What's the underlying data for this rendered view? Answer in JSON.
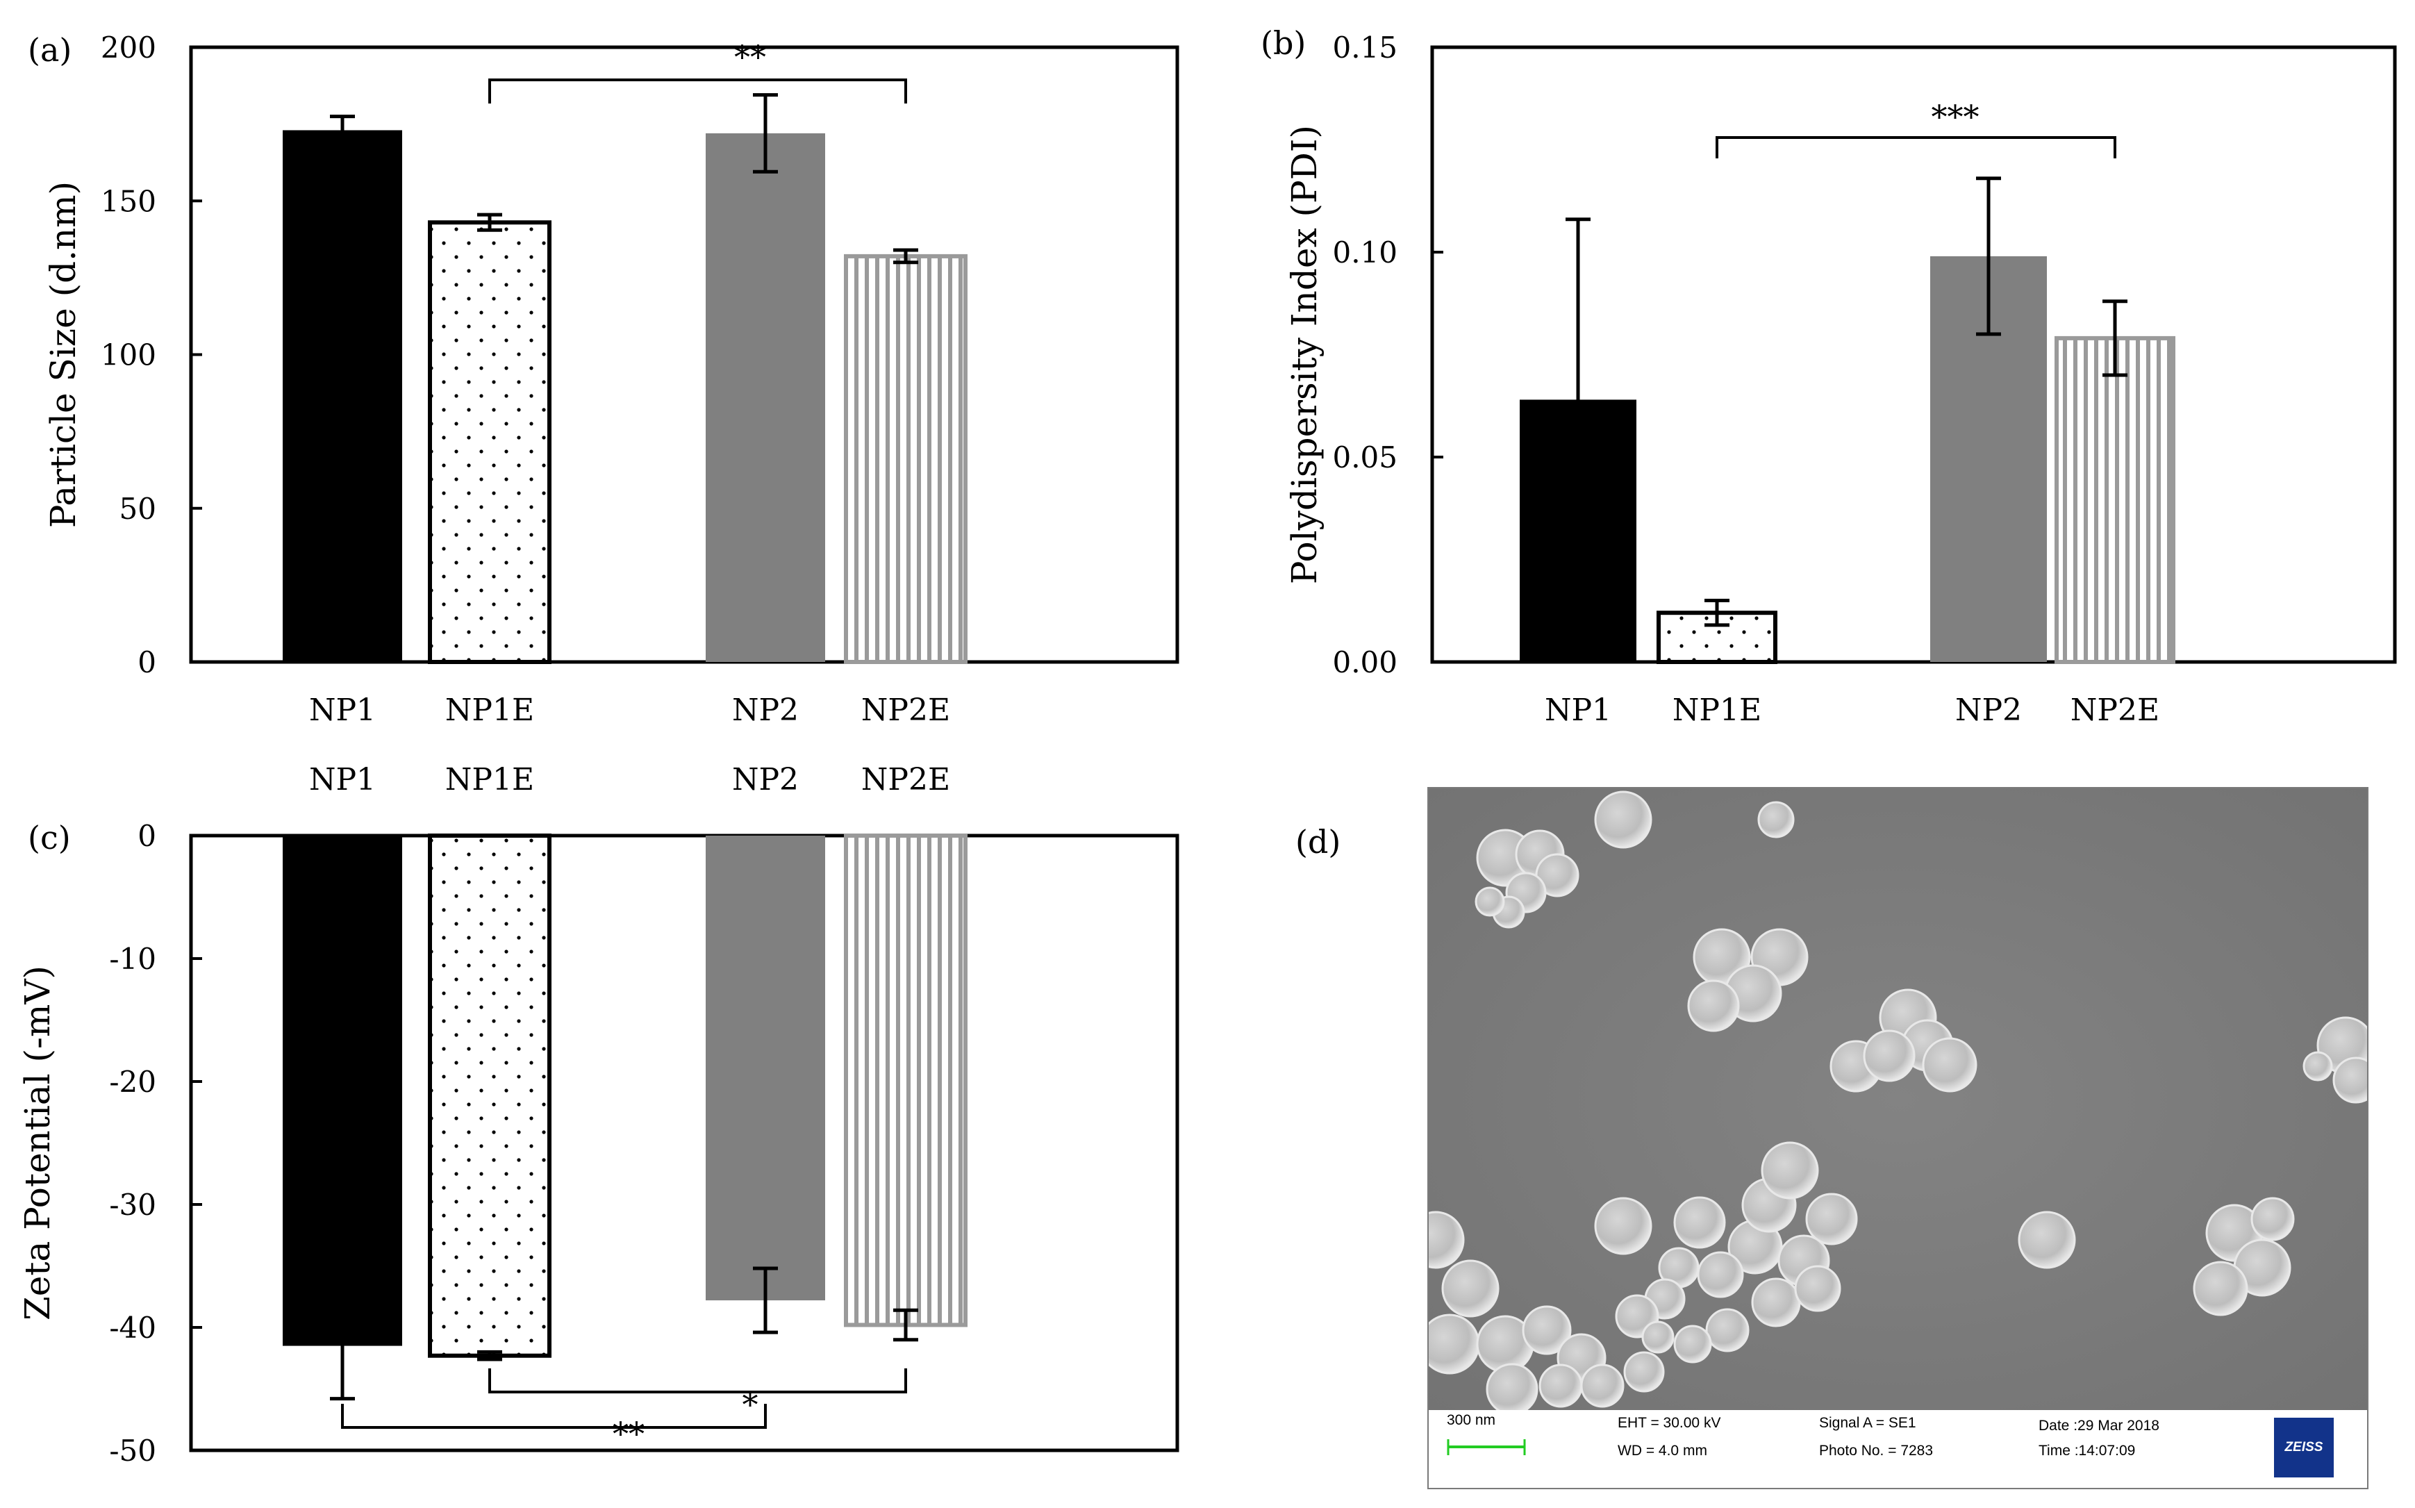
{
  "chart_data": [
    {
      "type": "bar",
      "panel": "(a)",
      "categories": [
        "NP1",
        "NP1E",
        "NP2",
        "NP2E"
      ],
      "values": [
        173,
        143,
        172,
        132
      ],
      "errors": [
        4.5,
        2.5,
        12.5,
        2
      ],
      "ylabel": "Particle Size (d.nm)",
      "ylim": [
        0,
        200
      ],
      "yticks": [
        "0",
        "50",
        "100",
        "150",
        "200"
      ],
      "annotations": [
        {
          "from": "NP1E",
          "to": "NP2E",
          "label": "**"
        }
      ]
    },
    {
      "type": "bar",
      "panel": "(b)",
      "categories": [
        "NP1",
        "NP1E",
        "NP2",
        "NP2E"
      ],
      "values": [
        0.064,
        0.012,
        0.099,
        0.079
      ],
      "errors": [
        0.044,
        0.003,
        0.019,
        0.009
      ],
      "ylabel": "Polydispersity Index (PDI)",
      "ylim": [
        0,
        0.15
      ],
      "yticks": [
        "0.00",
        "0.05",
        "0.10",
        "0.15"
      ],
      "annotations": [
        {
          "from": "NP1E",
          "to": "NP2E",
          "label": "***"
        }
      ]
    },
    {
      "type": "bar",
      "panel": "(c)",
      "categories": [
        "NP1",
        "NP1E",
        "NP2",
        "NP2E"
      ],
      "values": [
        -41.5,
        -42.3,
        -37.8,
        -39.8
      ],
      "errors": [
        4.3,
        0.3,
        2.6,
        1.2
      ],
      "ylabel": "Zeta Potential (-mV)",
      "ylim": [
        -50,
        0
      ],
      "yticks": [
        "0",
        "-10",
        "-20",
        "-30",
        "-40",
        "-50"
      ],
      "annotations": [
        {
          "from": "NP1E",
          "to": "NP2E",
          "label": "*"
        },
        {
          "from": "NP1",
          "to": "NP2",
          "label": "**"
        }
      ]
    }
  ],
  "panel_d": {
    "label": "(d)",
    "scale_bar": "300 nm",
    "eht": "EHT = 30.00 kV",
    "wd": "WD =  4.0 mm",
    "signal": "Signal A = SE1",
    "photo": "Photo No. = 7283",
    "date": "Date :29 Mar 2018",
    "time": "Time :14:07:09",
    "logo": "ZEISS"
  },
  "colors": {
    "np1": "#000000",
    "np1e": "#ffffff",
    "np2": "#808080",
    "np2e": "#9a9a9a",
    "sem_background": "#7d7d7d",
    "sem_particle": "#c9c9c9",
    "scale_bar": "#22cc22"
  }
}
